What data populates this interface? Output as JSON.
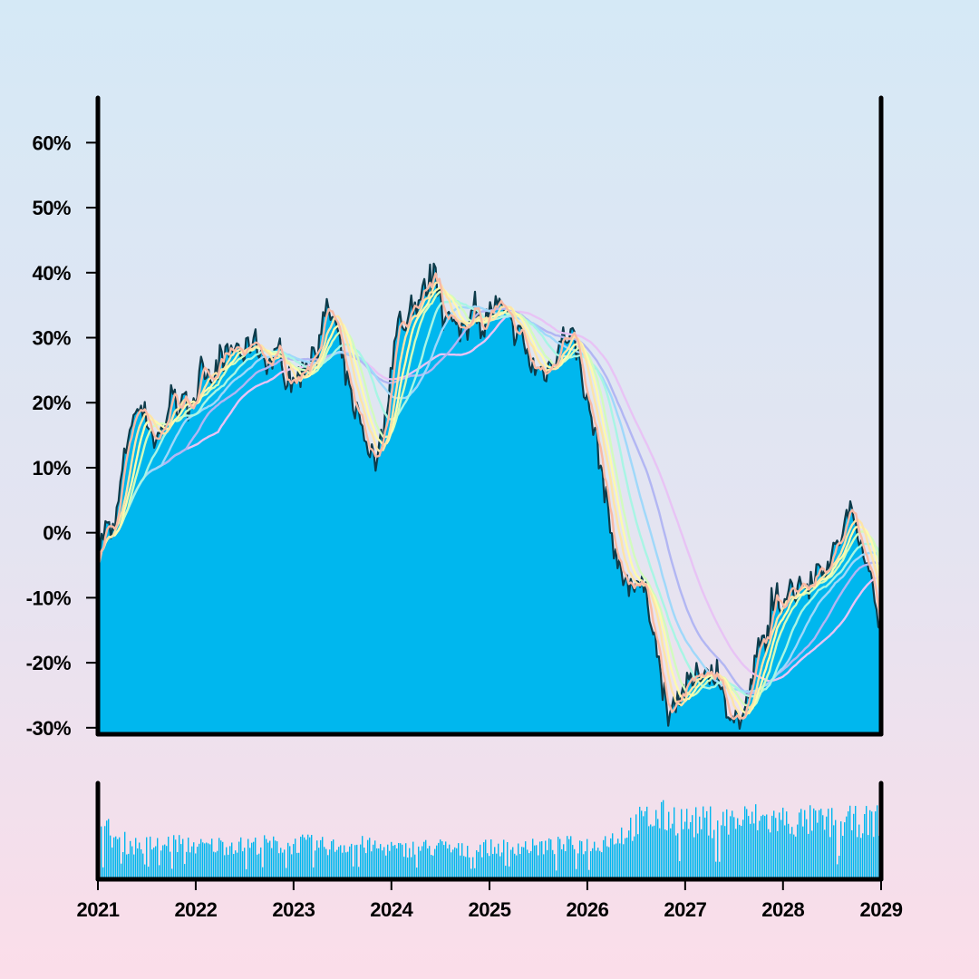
{
  "chart_data": [
    {
      "type": "area",
      "title": "",
      "xlabel": "",
      "ylabel": "",
      "yunit": "%",
      "xlim": [
        "2021-01-01",
        "2029-01-01"
      ],
      "ylim": [
        -31,
        68
      ],
      "y_ticks": [
        "60%",
        "50%",
        "40%",
        "30%",
        "20%",
        "10%",
        "0%",
        "-10%",
        "-20%",
        "-30%"
      ],
      "y_tick_values": [
        60,
        50,
        40,
        30,
        20,
        10,
        0,
        -10,
        -20,
        -30
      ],
      "series": [
        {
          "role": "price",
          "color": "#00b7ee",
          "points": [
            [
              "2021-01-01",
              -3
            ],
            [
              "2021-02-01",
              1
            ],
            [
              "2021-03-01",
              -1
            ],
            [
              "2021-04-01",
              9
            ],
            [
              "2021-05-01",
              17
            ],
            [
              "2021-06-01",
              19
            ],
            [
              "2021-07-01",
              18
            ],
            [
              "2021-08-01",
              14
            ],
            [
              "2021-09-01",
              16
            ],
            [
              "2021-10-01",
              21
            ],
            [
              "2021-11-01",
              19
            ],
            [
              "2021-12-01",
              20
            ],
            [
              "2022-01-01",
              21
            ],
            [
              "2022-02-01",
              26
            ],
            [
              "2022-03-01",
              24
            ],
            [
              "2022-04-01",
              27
            ],
            [
              "2022-05-01",
              27
            ],
            [
              "2022-06-01",
              29
            ],
            [
              "2022-07-01",
              27
            ],
            [
              "2022-08-01",
              30
            ],
            [
              "2022-09-01",
              28
            ],
            [
              "2022-10-01",
              26
            ],
            [
              "2022-11-01",
              27
            ],
            [
              "2022-12-01",
              24
            ],
            [
              "2023-01-01",
              23
            ],
            [
              "2023-02-01",
              25
            ],
            [
              "2023-03-01",
              27
            ],
            [
              "2023-04-01",
              30
            ],
            [
              "2023-05-01",
              34
            ],
            [
              "2023-06-01",
              33
            ],
            [
              "2023-07-01",
              27
            ],
            [
              "2023-08-01",
              21
            ],
            [
              "2023-09-01",
              18
            ],
            [
              "2023-10-01",
              14
            ],
            [
              "2023-11-01",
              11
            ],
            [
              "2023-12-01",
              15
            ],
            [
              "2024-01-01",
              26
            ],
            [
              "2024-02-01",
              33
            ],
            [
              "2024-03-01",
              32
            ],
            [
              "2024-04-01",
              35
            ],
            [
              "2024-05-01",
              37
            ],
            [
              "2024-06-01",
              40
            ],
            [
              "2024-07-01",
              37
            ],
            [
              "2024-08-01",
              33
            ],
            [
              "2024-09-01",
              31
            ],
            [
              "2024-10-01",
              32
            ],
            [
              "2024-11-01",
              34
            ],
            [
              "2024-12-01",
              32
            ],
            [
              "2025-01-01",
              34
            ],
            [
              "2025-02-01",
              35
            ],
            [
              "2025-03-01",
              33
            ],
            [
              "2025-04-01",
              31
            ],
            [
              "2025-05-01",
              30
            ],
            [
              "2025-06-01",
              26
            ],
            [
              "2025-07-01",
              25
            ],
            [
              "2025-08-01",
              25
            ],
            [
              "2025-09-01",
              27
            ],
            [
              "2025-10-01",
              30
            ],
            [
              "2025-11-01",
              31
            ],
            [
              "2025-12-01",
              27
            ],
            [
              "2026-01-01",
              20
            ],
            [
              "2026-02-01",
              15
            ],
            [
              "2026-03-01",
              8
            ],
            [
              "2026-04-01",
              0
            ],
            [
              "2026-05-01",
              -6
            ],
            [
              "2026-06-01",
              -8
            ],
            [
              "2026-07-01",
              -7
            ],
            [
              "2026-08-01",
              -9
            ],
            [
              "2026-09-01",
              -13
            ],
            [
              "2026-10-01",
              -22
            ],
            [
              "2026-11-01",
              -28
            ],
            [
              "2026-12-01",
              -25
            ],
            [
              "2027-01-01",
              -24
            ],
            [
              "2027-02-01",
              -23
            ],
            [
              "2027-03-01",
              -21
            ],
            [
              "2027-04-01",
              -21
            ],
            [
              "2027-05-01",
              -24
            ],
            [
              "2027-06-01",
              -26
            ],
            [
              "2027-07-01",
              -28
            ],
            [
              "2027-08-01",
              -29
            ],
            [
              "2027-09-01",
              -24
            ],
            [
              "2027-10-01",
              -18
            ],
            [
              "2027-11-01",
              -16
            ],
            [
              "2027-12-01",
              -12
            ],
            [
              "2028-01-01",
              -10
            ],
            [
              "2028-02-01",
              -8
            ],
            [
              "2028-03-01",
              -9
            ],
            [
              "2028-04-01",
              -7
            ],
            [
              "2028-05-01",
              -6
            ],
            [
              "2028-06-01",
              -5
            ],
            [
              "2028-07-01",
              -4
            ],
            [
              "2028-08-01",
              -1
            ],
            [
              "2028-09-01",
              3
            ],
            [
              "2028-10-01",
              2
            ],
            [
              "2028-11-01",
              -3
            ],
            [
              "2028-12-01",
              -9
            ],
            [
              "2029-01-01",
              -14
            ]
          ]
        },
        {
          "role": "moving-average",
          "color": "#f9b9a4",
          "window_months": 1
        },
        {
          "role": "moving-average",
          "color": "#fde4a8",
          "window_months": 2
        },
        {
          "role": "moving-average",
          "color": "#fdfaae",
          "window_months": 3
        },
        {
          "role": "moving-average",
          "color": "#d2fbbe",
          "window_months": 4
        },
        {
          "role": "moving-average",
          "color": "#a8f5e4",
          "window_months": 6
        },
        {
          "role": "moving-average",
          "color": "#9fd8fa",
          "window_months": 8
        },
        {
          "role": "moving-average",
          "color": "#b2b6f3",
          "window_months": 11
        },
        {
          "role": "moving-average",
          "color": "#e8c3f5",
          "window_months": 15
        }
      ]
    },
    {
      "type": "bar",
      "title": "",
      "role": "volume",
      "color": "#00b7ee",
      "xlim": [
        "2021-01-01",
        "2029-01-01"
      ],
      "monthly_level": [
        0.62,
        0.55,
        0.48,
        0.45,
        0.44,
        0.44,
        0.45,
        0.43,
        0.46,
        0.47,
        0.45,
        0.44,
        0.42,
        0.43,
        0.44,
        0.44,
        0.45,
        0.43,
        0.44,
        0.45,
        0.45,
        0.44,
        0.43,
        0.44,
        0.46,
        0.45,
        0.44,
        0.43,
        0.42,
        0.44,
        0.45,
        0.46,
        0.44,
        0.42,
        0.4,
        0.41,
        0.38,
        0.39,
        0.4,
        0.41,
        0.4,
        0.42,
        0.4,
        0.38,
        0.37,
        0.39,
        0.4,
        0.41,
        0.4,
        0.41,
        0.42,
        0.43,
        0.42,
        0.41,
        0.42,
        0.42,
        0.43,
        0.44,
        0.45,
        0.44,
        0.43,
        0.48,
        0.52,
        0.56,
        0.6,
        0.68,
        0.74,
        0.78,
        0.79,
        0.8,
        0.79,
        0.77,
        0.74,
        0.73,
        0.74,
        0.75,
        0.74,
        0.76,
        0.75,
        0.77,
        0.78,
        0.77,
        0.76,
        0.77,
        0.74,
        0.73,
        0.74,
        0.75,
        0.74,
        0.73,
        0.72,
        0.73,
        0.74,
        0.75,
        0.74,
        0.76
      ]
    }
  ],
  "x_axis": {
    "tick_labels": [
      "2021",
      "2022",
      "2023",
      "2024",
      "2025",
      "2026",
      "2027",
      "2028",
      "2029"
    ],
    "tick_dates": [
      "2021-01-01",
      "2022-01-01",
      "2023-01-01",
      "2024-01-01",
      "2025-01-01",
      "2026-01-01",
      "2027-01-01",
      "2028-01-01",
      "2029-01-01"
    ]
  },
  "colors": {
    "fill": "#00b7ee",
    "price_line": "#0d3b4a",
    "axis": "#000000"
  }
}
